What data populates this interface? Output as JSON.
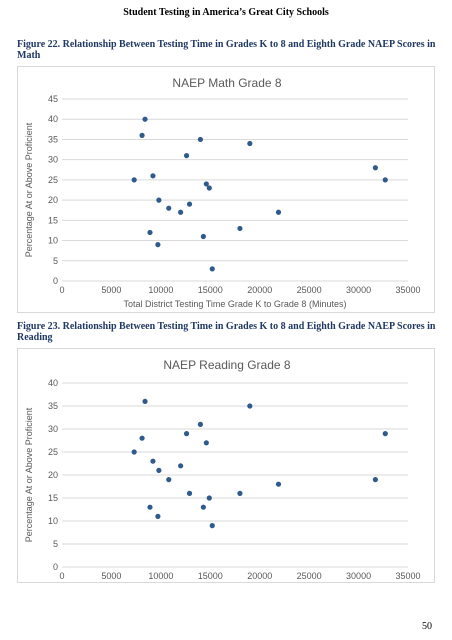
{
  "page": {
    "header": "Student Testing in America’s Great City Schools",
    "page_number": "50"
  },
  "figures": [
    {
      "caption": "Figure 22. Relationship Between Testing Time in Grades K to 8 and Eighth Grade NAEP Scores in Math"
    },
    {
      "caption": "Figure 23. Relationship Between Testing Time in Grades K to 8 and Eighth Grade NAEP Scores in Reading"
    }
  ],
  "chart_data": [
    {
      "type": "scatter",
      "title": "NAEP Math Grade 8",
      "xlabel": "Total District Testing Time Grade K to Grade 8 (Minutes)",
      "ylabel": "Percentage At or Above Proficient",
      "xlim": [
        0,
        35000
      ],
      "ylim": [
        0,
        45
      ],
      "xticks": [
        0,
        5000,
        10000,
        15000,
        20000,
        25000,
        30000,
        35000
      ],
      "yticks": [
        0,
        5,
        10,
        15,
        20,
        25,
        30,
        35,
        40,
        45
      ],
      "grid": "horizontal",
      "point_color": "#2f5a8c",
      "points": [
        [
          7300,
          25
        ],
        [
          8100,
          36
        ],
        [
          8400,
          40
        ],
        [
          8900,
          12
        ],
        [
          9200,
          26
        ],
        [
          9700,
          9
        ],
        [
          9800,
          20
        ],
        [
          10800,
          18
        ],
        [
          12000,
          17
        ],
        [
          12600,
          31
        ],
        [
          12900,
          19
        ],
        [
          14000,
          35
        ],
        [
          14300,
          11
        ],
        [
          14600,
          24
        ],
        [
          14900,
          23
        ],
        [
          15200,
          3
        ],
        [
          18000,
          13
        ],
        [
          19000,
          34
        ],
        [
          21900,
          17
        ],
        [
          31700,
          28
        ],
        [
          32700,
          25
        ]
      ]
    },
    {
      "type": "scatter",
      "title": "NAEP Reading Grade 8",
      "xlabel": "Total District Testing Time Grade K to Grade 8 (Minutes)",
      "ylabel": "Percentage At or Above Proficient",
      "xlim": [
        0,
        35000
      ],
      "ylim": [
        0,
        40
      ],
      "xticks": [
        0,
        5000,
        10000,
        15000,
        20000,
        25000,
        30000,
        35000
      ],
      "yticks": [
        0,
        5,
        10,
        15,
        20,
        25,
        30,
        35,
        40
      ],
      "grid": "horizontal",
      "point_color": "#2f5a8c",
      "points": [
        [
          7300,
          25
        ],
        [
          8100,
          28
        ],
        [
          8400,
          36
        ],
        [
          8900,
          13
        ],
        [
          9200,
          23
        ],
        [
          9700,
          11
        ],
        [
          9800,
          21
        ],
        [
          10800,
          19
        ],
        [
          12000,
          22
        ],
        [
          12600,
          29
        ],
        [
          12900,
          16
        ],
        [
          14000,
          31
        ],
        [
          14300,
          13
        ],
        [
          14600,
          27
        ],
        [
          14900,
          15
        ],
        [
          15200,
          9
        ],
        [
          18000,
          16
        ],
        [
          19000,
          35
        ],
        [
          21900,
          18
        ],
        [
          31700,
          19
        ],
        [
          32700,
          29
        ]
      ]
    }
  ]
}
